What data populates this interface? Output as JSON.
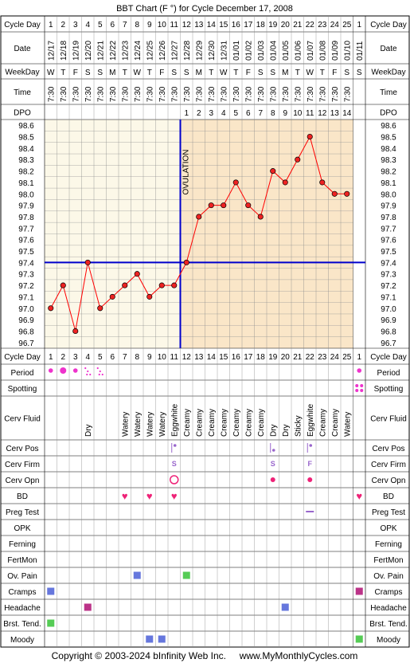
{
  "title": "BBT Chart (F °) for Cycle December 17, 2008",
  "footer": "Copyright © 2003-2024 bInfinity Web Inc.     www.MyMonthlyCycles.com",
  "ovulation_label": "OVULATION",
  "colors": {
    "grid": "#000000",
    "pre_ovulation_bg": "#fcf8e8",
    "post_ovulation_bg": "#fae6c8",
    "temp_line": "#ff0000",
    "point_fill": "#ee2222",
    "blue_line": "#0000cc",
    "pink": "#ee33cc",
    "heart": "#ee2277",
    "purple": "#9966cc",
    "square_blue": "#6677dd",
    "square_magenta": "#bb3388",
    "square_green": "#55cc55"
  },
  "labels": {
    "cycle_day": "Cycle Day",
    "date": "Date",
    "weekday": "WeekDay",
    "time": "Time",
    "dpo": "DPO",
    "period": "Period",
    "spotting": "Spotting",
    "cerv_fluid": "Cerv Fluid",
    "cerv_pos": "Cerv Pos",
    "cerv_firm": "Cerv Firm",
    "cerv_opn": "Cerv Opn",
    "bd": "BD",
    "preg_test": "Preg Test",
    "opk": "OPK",
    "ferning": "Ferning",
    "fertmon": "FertMon",
    "ov_pain": "Ov. Pain",
    "cramps": "Cramps",
    "headache": "Headache",
    "brst_tend": "Brst. Tend.",
    "moody": "Moody"
  },
  "days": {
    "cycle_day": [
      "1",
      "2",
      "3",
      "4",
      "5",
      "6",
      "7",
      "8",
      "9",
      "10",
      "11",
      "12",
      "13",
      "14",
      "15",
      "16",
      "17",
      "18",
      "19",
      "20",
      "21",
      "22",
      "23",
      "24",
      "25",
      "1"
    ],
    "date": [
      "12/17",
      "12/18",
      "12/19",
      "12/20",
      "12/21",
      "12/22",
      "12/23",
      "12/24",
      "12/25",
      "12/26",
      "12/27",
      "12/28",
      "12/29",
      "12/30",
      "12/31",
      "01/01",
      "01/02",
      "01/03",
      "01/04",
      "01/05",
      "01/06",
      "01/07",
      "01/08",
      "01/09",
      "01/10",
      "01/11"
    ],
    "weekday": [
      "W",
      "T",
      "F",
      "S",
      "S",
      "M",
      "T",
      "W",
      "T",
      "F",
      "S",
      "S",
      "M",
      "T",
      "W",
      "T",
      "F",
      "S",
      "S",
      "M",
      "T",
      "W",
      "T",
      "F",
      "S",
      "S"
    ],
    "time": [
      "7:30",
      "7:30",
      "7:30",
      "7:30",
      "7:30",
      "7:30",
      "7:30",
      "7:30",
      "7:30",
      "7:30",
      "7:30",
      "7:30",
      "7:30",
      "7:30",
      "7:30",
      "7:30",
      "7:30",
      "7:30",
      "7:30",
      "7:30",
      "7:30",
      "7:30",
      "7:30",
      "7:30",
      "7:30",
      ""
    ],
    "dpo": [
      "",
      "",
      "",
      "",
      "",
      "",
      "",
      "",
      "",
      "",
      "",
      "1",
      "2",
      "3",
      "4",
      "5",
      "6",
      "7",
      "8",
      "9",
      "10",
      "11",
      "12",
      "13",
      "14",
      ""
    ]
  },
  "chart_data": {
    "type": "line",
    "title": "BBT Chart (F °) for Cycle December 17, 2008",
    "x": [
      1,
      2,
      3,
      4,
      5,
      6,
      7,
      8,
      9,
      10,
      11,
      12,
      13,
      14,
      15,
      16,
      17,
      18,
      19,
      20,
      21,
      22,
      23,
      24,
      25
    ],
    "series": [
      {
        "values": [
          97.0,
          97.2,
          96.8,
          97.4,
          97.0,
          97.1,
          97.2,
          97.3,
          97.1,
          97.2,
          97.2,
          97.4,
          97.8,
          97.9,
          97.9,
          98.1,
          97.9,
          97.8,
          98.2,
          98.1,
          98.3,
          98.5,
          98.1,
          98.0,
          98.0
        ]
      }
    ],
    "y_ticks": [
      "98.6",
      "98.5",
      "98.4",
      "98.3",
      "98.2",
      "98.1",
      "98.0",
      "97.9",
      "97.8",
      "97.7",
      "97.6",
      "97.5",
      "97.4",
      "97.3",
      "97.2",
      "97.1",
      "97.0",
      "96.9",
      "96.8",
      "96.7"
    ],
    "ylim": [
      96.7,
      98.6
    ],
    "coverline": 97.4,
    "ovulation_day": 11,
    "grid": true
  },
  "cerv_fluid": [
    "",
    "",
    "",
    "Dry",
    "",
    "",
    "Watery",
    "Watery",
    "Watery",
    "Watery",
    "Eggwhite",
    "Creamy",
    "Creamy",
    "Creamy",
    "Creamy",
    "Creamy",
    "Creamy",
    "Creamy",
    "Dry",
    "Dry",
    "Sticky",
    "Eggwhite",
    "Creamy",
    "Creamy",
    "Watery",
    ""
  ],
  "period": [
    {
      "day": 1,
      "kind": "dot-small"
    },
    {
      "day": 2,
      "kind": "dot-large"
    },
    {
      "day": 3,
      "kind": "dot-small"
    },
    {
      "day": 4,
      "kind": "speckle"
    },
    {
      "day": 5,
      "kind": "speckle"
    },
    {
      "day": 26,
      "kind": "dot-small"
    }
  ],
  "spotting": [
    {
      "day": 26
    }
  ],
  "cerv_pos": [
    {
      "day": 11,
      "kind": "high"
    },
    {
      "day": 19,
      "kind": "low"
    },
    {
      "day": 22,
      "kind": "high"
    }
  ],
  "cerv_firm": [
    {
      "day": 11,
      "text": "S"
    },
    {
      "day": 19,
      "text": "S"
    },
    {
      "day": 22,
      "text": "F"
    }
  ],
  "cerv_opn": [
    {
      "day": 11,
      "kind": "open"
    },
    {
      "day": 19,
      "kind": "closed"
    },
    {
      "day": 22,
      "kind": "closed"
    }
  ],
  "bd": [
    7,
    9,
    11,
    26
  ],
  "preg_test": [
    {
      "day": 22
    }
  ],
  "ov_pain": [
    {
      "day": 8,
      "color": "square_blue"
    },
    {
      "day": 12,
      "color": "square_green"
    }
  ],
  "cramps": [
    {
      "day": 1,
      "color": "square_blue"
    },
    {
      "day": 26,
      "color": "square_magenta"
    }
  ],
  "headache": [
    {
      "day": 4,
      "color": "square_magenta"
    },
    {
      "day": 20,
      "color": "square_blue"
    }
  ],
  "brst_tend": [
    {
      "day": 1,
      "color": "square_green"
    }
  ],
  "moody": [
    {
      "day": 9,
      "color": "square_blue"
    },
    {
      "day": 10,
      "color": "square_blue"
    },
    {
      "day": 26,
      "color": "square_green"
    }
  ]
}
